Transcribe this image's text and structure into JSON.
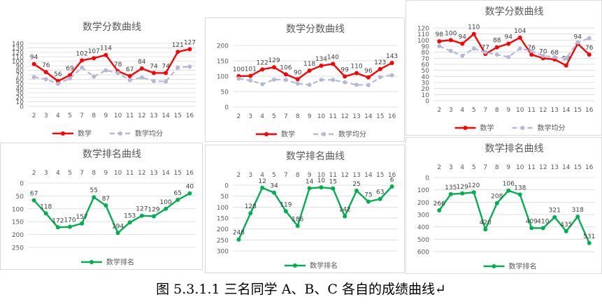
{
  "caption": "图  5.3.1.1  三名同学 A、B、C 各自的成绩曲线↵",
  "colors": {
    "score": "#ff0000",
    "average": "#b4bad6",
    "rank": "#00b050"
  },
  "chart_data": [
    {
      "type": "line",
      "title": "数学分数曲线",
      "categories": [
        "2",
        "3",
        "4",
        "5",
        "7",
        "8",
        "9",
        "10",
        "11",
        "12",
        "13",
        "14",
        "15",
        "16"
      ],
      "ylim": [
        0,
        140
      ],
      "yticks": [
        0,
        10,
        20,
        30,
        40,
        50,
        60,
        70,
        80,
        90,
        100,
        110,
        120,
        130,
        140
      ],
      "reversed": false,
      "series": [
        {
          "name": "数学",
          "color": "#ff0000",
          "dashed": false,
          "labels": true,
          "values": [
            94,
            76,
            56,
            69,
            102,
            107,
            114,
            78,
            67,
            84,
            74,
            74,
            121,
            127
          ]
        },
        {
          "name": "数学均分",
          "color": "#b4bad6",
          "dashed": true,
          "labels": false,
          "values": [
            65,
            60,
            50,
            62,
            86,
            66,
            80,
            74,
            58,
            64,
            56,
            55,
            86,
            88
          ]
        }
      ]
    },
    {
      "type": "line",
      "title": "数学分数曲线",
      "categories": [
        "2",
        "3",
        "4",
        "5",
        "7",
        "8",
        "9",
        "10",
        "11",
        "12",
        "13",
        "14",
        "15",
        "16"
      ],
      "ylim": [
        0,
        200
      ],
      "yticks": [
        0,
        50,
        100,
        150,
        200
      ],
      "reversed": false,
      "series": [
        {
          "name": "数学",
          "color": "#ff0000",
          "dashed": false,
          "labels": true,
          "values": [
            100,
            101,
            122,
            129,
            106,
            90,
            118,
            134,
            140,
            99,
            110,
            96,
            123,
            143
          ]
        },
        {
          "name": "数学均分",
          "color": "#b4bad6",
          "dashed": true,
          "labels": false,
          "values": [
            92,
            86,
            74,
            89,
            88,
            76,
            72,
            88,
            88,
            80,
            72,
            71,
            97,
            103
          ]
        }
      ]
    },
    {
      "type": "line",
      "title": "数学分数曲线",
      "categories": [
        "2",
        "3",
        "4",
        "5",
        "7",
        "8",
        "9",
        "10",
        "11",
        "12",
        "13",
        "14",
        "15",
        "16"
      ],
      "ylim": [
        0,
        120
      ],
      "yticks": [
        0,
        10,
        20,
        30,
        40,
        50,
        60,
        70,
        80,
        90,
        100,
        110,
        120
      ],
      "reversed": false,
      "series": [
        {
          "name": "数学",
          "color": "#ff0000",
          "dashed": false,
          "labels": true,
          "values": [
            98,
            100,
            94,
            110,
            77,
            88,
            94,
            104,
            76,
            70,
            68,
            58,
            94,
            76
          ]
        },
        {
          "name": "数学均分",
          "color": "#b4bad6",
          "dashed": true,
          "labels": false,
          "values": [
            90,
            82,
            74,
            86,
            80,
            76,
            72,
            86,
            82,
            74,
            72,
            70,
            96,
            103
          ]
        }
      ]
    },
    {
      "type": "line",
      "title": "数学排名曲线",
      "categories": [
        "2",
        "3",
        "4",
        "5",
        "7",
        "8",
        "9",
        "10",
        "11",
        "12",
        "13",
        "14",
        "15",
        "16"
      ],
      "ylim": [
        0,
        250
      ],
      "yticks": [
        0,
        50,
        100,
        150,
        200,
        250
      ],
      "reversed": true,
      "series": [
        {
          "name": "数学排名",
          "color": "#00b050",
          "dashed": false,
          "labels": true,
          "values": [
            67,
            118,
            172,
            170,
            157,
            55,
            87,
            194,
            153,
            127,
            129,
            100,
            65,
            40
          ]
        }
      ]
    },
    {
      "type": "line",
      "title": "数学排名曲线",
      "categories": [
        "2",
        "3",
        "4",
        "5",
        "7",
        "8",
        "9",
        "10",
        "11",
        "12",
        "13",
        "14",
        "15",
        "16"
      ],
      "ylim": [
        0,
        300
      ],
      "yticks": [
        0,
        50,
        100,
        150,
        200,
        250,
        300
      ],
      "reversed": true,
      "series": [
        {
          "name": "数学排名",
          "color": "#00b050",
          "dashed": false,
          "labels": true,
          "values": [
            248,
            128,
            12,
            34,
            119,
            186,
            14,
            10,
            15,
            142,
            25,
            75,
            63,
            6
          ]
        }
      ]
    },
    {
      "type": "line",
      "title": "数学排名曲线",
      "categories": [
        "2",
        "3",
        "4",
        "5",
        "7",
        "8",
        "9",
        "10",
        "11",
        "12",
        "13",
        "14",
        "15",
        "16"
      ],
      "ylim": [
        0,
        600
      ],
      "yticks": [
        0,
        100,
        200,
        300,
        400,
        500,
        600
      ],
      "reversed": true,
      "series": [
        {
          "name": "数学排名",
          "color": "#00b050",
          "dashed": false,
          "labels": true,
          "values": [
            266,
            135,
            129,
            120,
            420,
            208,
            106,
            138,
            409,
            410,
            321,
            435,
            318,
            531
          ]
        }
      ]
    }
  ]
}
